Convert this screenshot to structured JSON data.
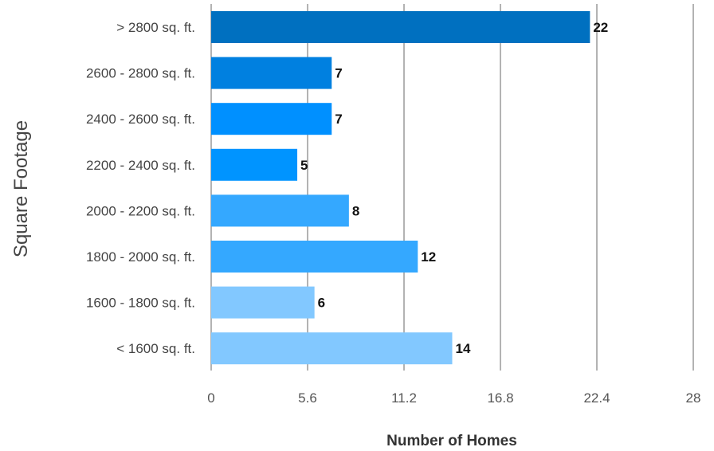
{
  "chart_data": {
    "type": "bar",
    "orientation": "horizontal",
    "title": "",
    "xlabel": "Number of Homes",
    "ylabel": "Square Footage",
    "categories": [
      "> 2800 sq. ft.",
      "2600 - 2800 sq. ft.",
      "2400 - 2600 sq. ft.",
      "2200 - 2400 sq. ft.",
      "2000 - 2200 sq. ft.",
      "1800 - 2000 sq. ft.",
      "1600 - 1800 sq. ft.",
      "< 1600 sq. ft."
    ],
    "values": [
      22,
      7,
      7,
      5,
      8,
      12,
      6,
      14
    ],
    "value_labels": [
      "22",
      "7",
      "7",
      "5",
      "8",
      "12",
      "6",
      "14"
    ],
    "bar_colors": [
      "#0070c0",
      "#0080e0",
      "#0090ff",
      "#0094ff",
      "#34a8ff",
      "#34a8ff",
      "#82c8ff",
      "#82c8ff"
    ],
    "xlim": [
      0,
      28
    ],
    "x_ticks": [
      0,
      5.6,
      11.2,
      16.8,
      22.4,
      28
    ],
    "x_tick_labels": [
      "0",
      "5.6",
      "11.2",
      "16.8",
      "22.4",
      "28"
    ],
    "grid": true,
    "legend": "none"
  }
}
